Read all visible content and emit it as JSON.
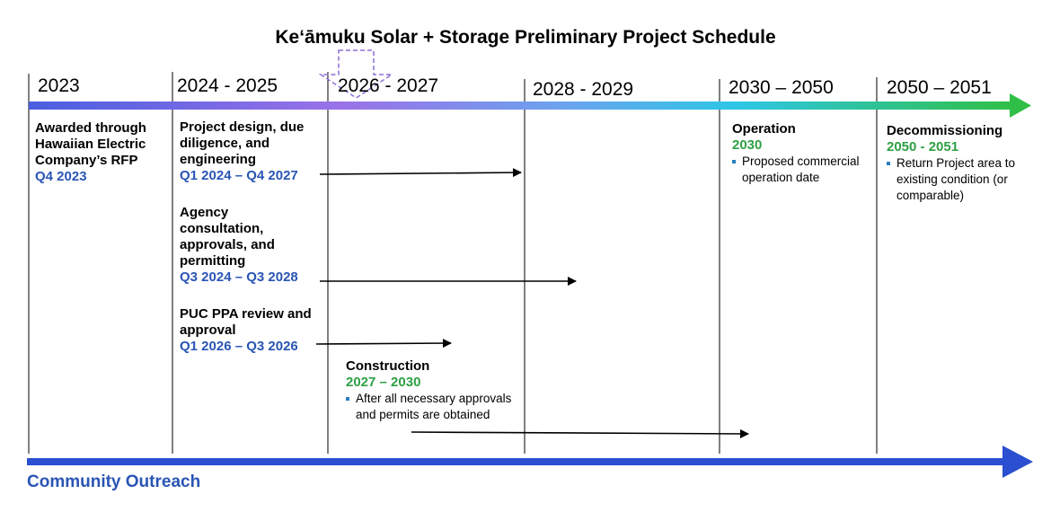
{
  "title": "Keʻāmuku Solar + Storage Preliminary Project Schedule",
  "periods": [
    "2023",
    "2024 - 2025",
    "2026 - 2027",
    "2028 - 2029",
    "2030 – 2050",
    "2050 – 2051"
  ],
  "colors": {
    "blue": "#2a55b5",
    "green": "#2ea043",
    "purple": "#8e6fd8"
  },
  "phases": {
    "rfp": {
      "title": "Awarded through Hawaiian Electric Company’s RFP",
      "date": "Q4 2023"
    },
    "design": {
      "title": "Project design, due diligence, and engineering",
      "date": "Q1 2024 – Q4 2027"
    },
    "agency": {
      "title": "Agency consultation, approvals, and permitting",
      "date": "Q3 2024 – Q3 2028"
    },
    "puc": {
      "title": "PUC PPA review and approval",
      "date": "Q1 2026 – Q3 2026"
    },
    "construction": {
      "title": "Construction",
      "date": "2027 – 2030",
      "bullet": "After all necessary approvals and permits are obtained"
    },
    "operation": {
      "title": "Operation",
      "date": "2030",
      "bullet": "Proposed commercial operation date"
    },
    "decommissioning": {
      "title": "Decommissioning",
      "date": "2050 - 2051",
      "bullet": "Return Project area to existing condition (or comparable)"
    }
  },
  "community_outreach": "Community Outreach"
}
